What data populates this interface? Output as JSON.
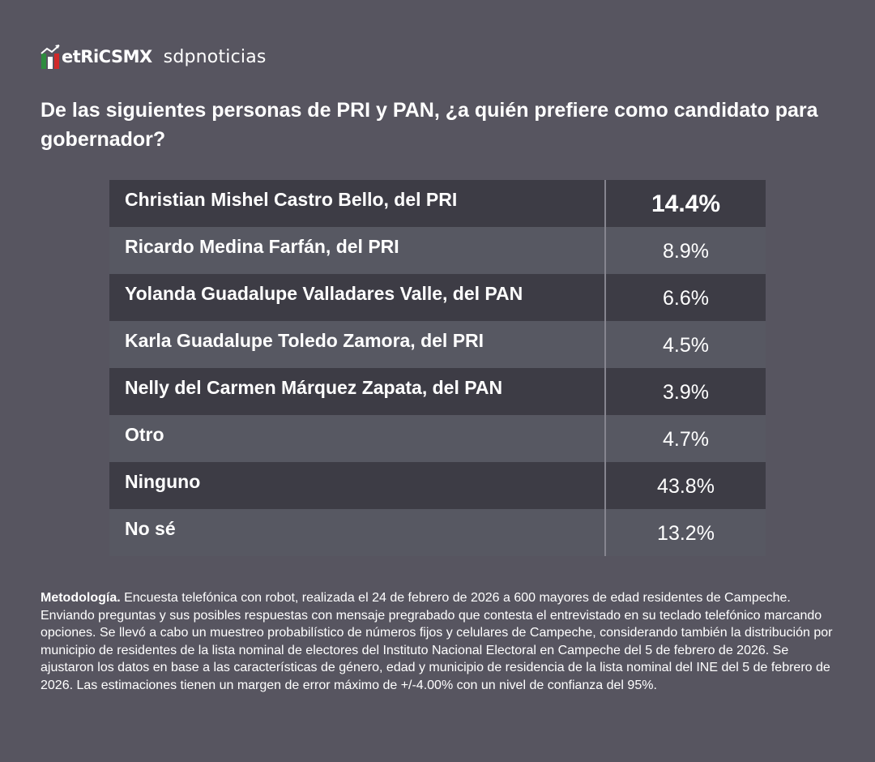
{
  "header": {
    "logo_metrics": "etRiCSMX",
    "logo_sdp": "sdpnoticias"
  },
  "question": "De las siguientes personas de PRI y PAN, ¿a quién prefiere como candidato para gobernador?",
  "results": [
    {
      "name": "Christian Mishel Castro Bello, del PRI",
      "value": "14.4%"
    },
    {
      "name": "Ricardo Medina Farfán, del PRI",
      "value": "8.9%"
    },
    {
      "name": "Yolanda Guadalupe Valladares Valle, del PAN",
      "value": "6.6%"
    },
    {
      "name": "Karla Guadalupe Toledo Zamora, del PRI",
      "value": "4.5%"
    },
    {
      "name": "Nelly del Carmen Márquez Zapata, del PAN",
      "value": "3.9%"
    },
    {
      "name": "Otro",
      "value": "4.7%"
    },
    {
      "name": "Ninguno",
      "value": "43.8%"
    },
    {
      "name": "No sé",
      "value": "13.2%"
    }
  ],
  "methodology": {
    "label": "Metodología.",
    "text": " Encuesta telefónica con robot, realizada el 24 de febrero de 2026 a 600 mayores de edad residentes de Campeche. Enviando preguntas y sus posibles respuestas con mensaje pregrabado que contesta el entrevistado en su teclado telefónico marcando opciones. Se llevó a cabo un muestreo probabilístico de números fijos y celulares de Campeche, considerando también la distribución por municipio de residentes de la lista nominal de electores del Instituto Nacional Electoral en Campeche del 5 de febrero de 2026. Se ajustaron los datos en base a las características de género, edad y municipio de residencia de la lista nominal del INE del 5 de febrero de 2026. Las estimaciones tienen un margen de error máximo de +/-4.00% con un nivel de confianza del 95%."
  },
  "colors": {
    "background": "#575560",
    "row_dark": "#3d3c45",
    "row_light": "#575862",
    "logo_green": "#2e8b3e",
    "logo_red": "#d12a2a"
  }
}
